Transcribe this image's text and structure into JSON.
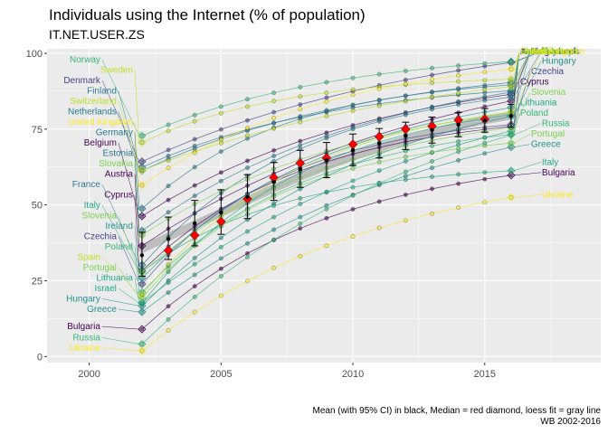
{
  "title": "Individuals using the Internet (% of population)",
  "subtitle": "IT.NET.USER.ZS",
  "caption_line1": "Mean (with 95% CI) in black, Median = red diamond, loess fit = gray line",
  "caption_line2": "WB 2002-2016",
  "colors": {
    "panel": "#ebebeb",
    "grid": "#ffffff",
    "mean": "#000000",
    "median": "#ff0000",
    "loess": "#bebebe"
  },
  "chart_data": {
    "type": "line",
    "title": "Individuals using the Internet (% of population)",
    "subtitle": "IT.NET.USER.ZS",
    "xlabel": "",
    "ylabel": "",
    "xlim": [
      1998.4,
      2019.4
    ],
    "ylim": [
      -2,
      101.5
    ],
    "x_ticks": [
      2000,
      2005,
      2010,
      2015
    ],
    "y_ticks": [
      0,
      25,
      50,
      75,
      100
    ],
    "grid": true,
    "legend": "none",
    "summary": {
      "years": [
        2002,
        2003,
        2004,
        2005,
        2006,
        2007,
        2008,
        2009,
        2010,
        2011,
        2012,
        2013,
        2014,
        2015,
        2016
      ],
      "mean": [
        33.4,
        38.8,
        43.9,
        47.5,
        52.6,
        57.6,
        61.9,
        64.8,
        68.1,
        70.3,
        72.8,
        74.7,
        76.5,
        77.9,
        79.4
      ],
      "ci_low": [
        26.5,
        32,
        36.5,
        40.3,
        45.5,
        51.5,
        55.8,
        59,
        63,
        65.5,
        68.3,
        70.4,
        72.5,
        74,
        75.6
      ],
      "ci_high": [
        41,
        46,
        51.5,
        55,
        60,
        64,
        68,
        70.6,
        73.4,
        75.2,
        77.3,
        79,
        80.5,
        81.8,
        83.2
      ],
      "median": [
        null,
        35,
        40,
        44.5,
        52,
        59,
        63.8,
        65.5,
        70,
        72.5,
        75,
        76,
        78,
        78.3,
        null
      ],
      "loess": [
        35.5,
        39.5,
        43.5,
        47.5,
        51.5,
        55.5,
        59.3,
        62.8,
        66,
        68.9,
        71.5,
        74,
        76,
        78,
        79.5
      ]
    },
    "series": [
      {
        "name": "Austria",
        "color": "#440154",
        "start": 36.5,
        "end": 84.3
      },
      {
        "name": "Belgium",
        "color": "#440154",
        "start": 46.3,
        "end": 86.5
      },
      {
        "name": "Bulgaria",
        "color": "#440154",
        "start": 9,
        "end": 59.8
      },
      {
        "name": "Cyprus",
        "color": "#440154",
        "start": 28.3,
        "end": 75.9
      },
      {
        "name": "Czechia",
        "color": "#414487",
        "start": 23.9,
        "end": 76.5
      },
      {
        "name": "Denmark",
        "color": "#414487",
        "start": 64.3,
        "end": 97
      },
      {
        "name": "Estonia",
        "color": "#2a788e",
        "start": 41.5,
        "end": 87.2
      },
      {
        "name": "Finland",
        "color": "#2a788e",
        "start": 62.4,
        "end": 87.7
      },
      {
        "name": "France",
        "color": "#2a788e",
        "start": 30.2,
        "end": 85.6
      },
      {
        "name": "Germany",
        "color": "#2a788e",
        "start": 48.8,
        "end": 89.6
      },
      {
        "name": "Greece",
        "color": "#21918c",
        "start": 14.7,
        "end": 69.1
      },
      {
        "name": "Hungary",
        "color": "#21918c",
        "start": 16.7,
        "end": 79.3
      },
      {
        "name": "Ireland",
        "color": "#21918c",
        "start": 25.9,
        "end": 82.1
      },
      {
        "name": "Israel",
        "color": "#22a884",
        "start": 17.6,
        "end": 79.8
      },
      {
        "name": "Italy",
        "color": "#22a884",
        "start": 28,
        "end": 61.3
      },
      {
        "name": "Lithuania",
        "color": "#22a884",
        "start": 17.7,
        "end": 74.4
      },
      {
        "name": "Netherlands",
        "color": "#2a788e",
        "start": 61.3,
        "end": 90.4
      },
      {
        "name": "Norway",
        "color": "#35b779",
        "start": 72.8,
        "end": 97.3
      },
      {
        "name": "Poland",
        "color": "#35b779",
        "start": 21.2,
        "end": 73.3
      },
      {
        "name": "Portugal",
        "color": "#7ad151",
        "start": 19.4,
        "end": 70.4
      },
      {
        "name": "Russia",
        "color": "#35b779",
        "start": 4.1,
        "end": 73.1
      },
      {
        "name": "Slovakia",
        "color": "#7ad151",
        "start": 40.1,
        "end": 80.5
      },
      {
        "name": "Slovenia",
        "color": "#7ad151",
        "start": 27.8,
        "end": 75.5
      },
      {
        "name": "Spain",
        "color": "#bddf26",
        "start": 20.4,
        "end": 80.6
      },
      {
        "name": "Sweden",
        "color": "#bddf26",
        "start": 70.6,
        "end": 91.5
      },
      {
        "name": "Switzerland",
        "color": "#bddf26",
        "start": 61.4,
        "end": 89.1
      },
      {
        "name": "Ukraine",
        "color": "#fde725",
        "start": 1.9,
        "end": 52.5
      },
      {
        "name": "United Kingdom",
        "color": "#fde725",
        "start": 56.5,
        "end": 94.8
      }
    ]
  }
}
